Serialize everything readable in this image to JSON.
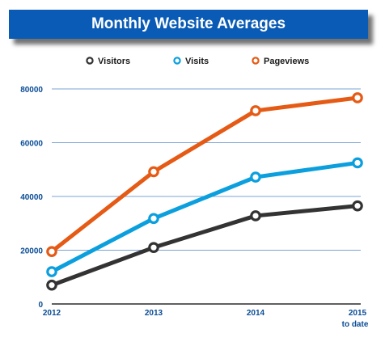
{
  "chart_data": {
    "type": "line",
    "title": "Monthly Website Averages",
    "categories": [
      "2012",
      "2013",
      "2014",
      "2015"
    ],
    "category_sublabels": [
      "",
      "",
      "",
      "to date"
    ],
    "ylim": [
      0,
      80000
    ],
    "yticks": [
      0,
      20000,
      40000,
      60000,
      80000
    ],
    "grid": true,
    "legend_position": "top",
    "series": [
      {
        "name": "Visitors",
        "color": "#333333",
        "values": [
          7000,
          21000,
          32800,
          36500
        ]
      },
      {
        "name": "Visits",
        "color": "#0b9fde",
        "values": [
          12000,
          31800,
          47200,
          52500
        ]
      },
      {
        "name": "Pageviews",
        "color": "#e55a14",
        "values": [
          19500,
          49200,
          71900,
          76700
        ]
      }
    ],
    "colors": {
      "banner": "#0a5bb5",
      "axis_text": "#0a4c96",
      "grid": "#7aa3d4"
    }
  }
}
